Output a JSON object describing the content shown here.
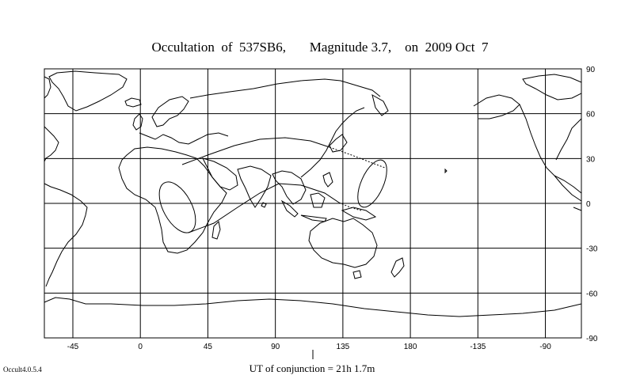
{
  "title": "Occultation  of  537SB6,       Magnitude 3.7,    on  2009 Oct  7",
  "conjunction_label": "UT of conjunction = 21h  1.7m",
  "version_label": "Occult4.0.5.4",
  "longitude_ticks": [
    {
      "label": "-45",
      "value": -45
    },
    {
      "label": "0",
      "value": 0
    },
    {
      "label": "45",
      "value": 45
    },
    {
      "label": "90",
      "value": 90
    },
    {
      "label": "135",
      "value": 135
    },
    {
      "label": "180",
      "value": 180
    },
    {
      "label": "-135",
      "value": 225
    },
    {
      "label": "-90",
      "value": 270
    }
  ],
  "latitude_ticks": [
    {
      "label": "90",
      "value": 90
    },
    {
      "label": "60",
      "value": 60
    },
    {
      "label": "30",
      "value": 30
    },
    {
      "label": "0",
      "value": 0
    },
    {
      "label": "-30",
      "value": -30
    },
    {
      "label": "-60",
      "value": -60
    },
    {
      "label": "-90",
      "value": -90
    }
  ],
  "map_extent": {
    "lon_min": -64,
    "lon_max": 294,
    "lat_min": -90,
    "lat_max": 90
  },
  "conjunction_longitude": 115,
  "colors": {
    "line": "#000000",
    "background": "#ffffff"
  }
}
